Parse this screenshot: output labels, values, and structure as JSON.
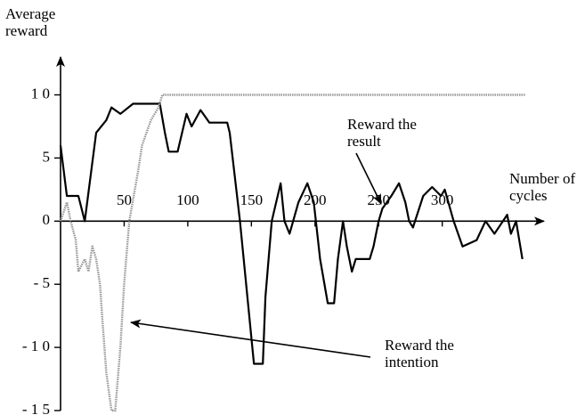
{
  "chart_data": {
    "type": "line",
    "y_label": "Average reward",
    "x_label": "Number of cycles",
    "xlim": [
      0,
      380
    ],
    "ylim": [
      -15,
      13
    ],
    "xticks": [
      50,
      100,
      150,
      200,
      250,
      300
    ],
    "yticks": [
      {
        "value": 10,
        "label": "1 0"
      },
      5,
      0,
      {
        "value": -5,
        "label": "- 5"
      },
      {
        "value": -10,
        "label": "- 1 0"
      },
      {
        "value": -15,
        "label": "- 1 5"
      }
    ],
    "series": [
      {
        "name": "Reward the result",
        "color": "#000000",
        "x": [
          0,
          5,
          14,
          19,
          28,
          36,
          40,
          47,
          57,
          78,
          82,
          85,
          92,
          99,
          103,
          110,
          117,
          131,
          133,
          141,
          152,
          159,
          161,
          166,
          173,
          176,
          180,
          187,
          194,
          199,
          204,
          210,
          215,
          218,
          222,
          225,
          229,
          232,
          243,
          246,
          250,
          253,
          260,
          266,
          271,
          274,
          277,
          285,
          292,
          299,
          302,
          309,
          316,
          327,
          334,
          341,
          351,
          354,
          358,
          363
        ],
        "values": [
          6,
          2,
          2,
          0,
          7,
          8,
          9,
          8.5,
          9.3,
          9.3,
          7,
          5.5,
          5.5,
          8.5,
          7.5,
          8.8,
          7.8,
          7.8,
          7,
          0,
          -11.3,
          -11.3,
          -6,
          0,
          3,
          0,
          -1,
          1.5,
          3,
          1.5,
          -3,
          -6.5,
          -6.5,
          -3,
          0,
          -2,
          -4,
          -3,
          -3,
          -2,
          0,
          1,
          2,
          3,
          1.5,
          0,
          -0.5,
          2,
          2.7,
          2,
          2.5,
          0,
          -2,
          -1.5,
          0,
          -1,
          0.5,
          -1,
          0,
          -3
        ]
      },
      {
        "name": "Reward the intention",
        "color": "#999999",
        "x": [
          0,
          5,
          8,
          12,
          14,
          19,
          22,
          25,
          28,
          31,
          33,
          36,
          40,
          43,
          47,
          50,
          54,
          61,
          64,
          71,
          77,
          80,
          365
        ],
        "values": [
          0,
          1.5,
          0,
          -1.5,
          -4,
          -3,
          -4,
          -2,
          -3,
          -5,
          -8,
          -12,
          -15,
          -15,
          -10,
          -5,
          0,
          4,
          6,
          8,
          9,
          10,
          10
        ]
      }
    ]
  }
}
